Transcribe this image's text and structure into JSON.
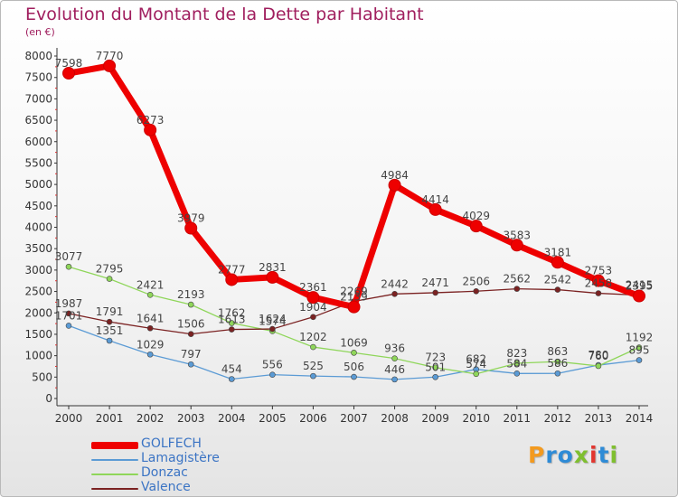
{
  "title": "Evolution du Montant de la Dette par Habitant",
  "subtitle": "(en €)",
  "chart_data": {
    "type": "line",
    "title": "Evolution du Montant de la Dette par Habitant",
    "ylabel": "(en €)",
    "xlabel": "",
    "x": [
      "2000",
      "2001",
      "2002",
      "2003",
      "2004",
      "2005",
      "2006",
      "2007",
      "2008",
      "2009",
      "2010",
      "2011",
      "2012",
      "2013",
      "2014"
    ],
    "ylim": [
      0,
      8000
    ],
    "yticks": [
      0,
      500,
      1000,
      1500,
      2000,
      2500,
      3000,
      3500,
      4000,
      4500,
      5000,
      5500,
      6000,
      6500,
      7000,
      7500,
      8000
    ],
    "grid": false,
    "legend_position": "bottom-left",
    "series": [
      {
        "name": "GOLFECH",
        "color": "#ee0000",
        "values": [
          7598,
          7770,
          6273,
          3979,
          2777,
          2831,
          2361,
          2139,
          4984,
          4414,
          4029,
          3583,
          3181,
          2753,
          2395
        ],
        "labels": [
          "7598",
          "7770",
          "6273",
          "3979",
          "2777",
          "2831",
          "2361",
          "2139",
          "4984",
          "4414",
          "4029",
          "3583",
          "3181",
          "2753",
          "2395"
        ]
      },
      {
        "name": "Lamagistère",
        "color": "#5b9bd5",
        "values": [
          1701,
          1351,
          1029,
          797,
          454,
          556,
          525,
          506,
          446,
          501,
          682,
          584,
          586,
          780,
          895
        ],
        "labels": [
          "1701",
          "1351",
          "1029",
          "797",
          "454",
          "556",
          "525",
          "506",
          "446",
          "501",
          "682",
          "584",
          "586",
          "780",
          "895"
        ]
      },
      {
        "name": "Donzac",
        "color": "#8fd65a",
        "values": [
          3077,
          2795,
          2421,
          2193,
          1762,
          1574,
          1202,
          1069,
          936,
          723,
          574,
          823,
          863,
          760,
          1192
        ],
        "labels": [
          "3077",
          "2795",
          "2421",
          "2193",
          "1762",
          "1574",
          "1202",
          "1069",
          "936",
          "723",
          "574",
          "823",
          "863",
          "760",
          "1192"
        ]
      },
      {
        "name": "Valence",
        "color": "#7b2222",
        "values": [
          1987,
          1791,
          1641,
          1506,
          1613,
          1624,
          1904,
          2269,
          2442,
          2471,
          2506,
          2562,
          2542,
          2458,
          2415
        ],
        "labels": [
          "1987",
          "1791",
          "1641",
          "1506",
          "1613",
          "1624",
          "1904",
          "2269",
          "2442",
          "2471",
          "2506",
          "2562",
          "2542",
          "2458",
          "2415"
        ]
      }
    ]
  },
  "legend": [
    {
      "label": "GOLFECH",
      "color": "#ee0000"
    },
    {
      "label": "Lamagistère",
      "color": "#5b9bd5"
    },
    {
      "label": "Donzac",
      "color": "#8fd65a"
    },
    {
      "label": "Valence",
      "color": "#7b2222"
    }
  ],
  "logo": {
    "letters": [
      {
        "ch": "P",
        "color": "#f39a1f"
      },
      {
        "ch": "r",
        "color": "#2e8bd6"
      },
      {
        "ch": "o",
        "color": "#2e8bd6"
      },
      {
        "ch": "x",
        "color": "#7fbf2f"
      },
      {
        "ch": "i",
        "color": "#e2362f"
      },
      {
        "ch": "t",
        "color": "#2e8bd6"
      },
      {
        "ch": "i",
        "color": "#7fbf2f"
      }
    ]
  }
}
